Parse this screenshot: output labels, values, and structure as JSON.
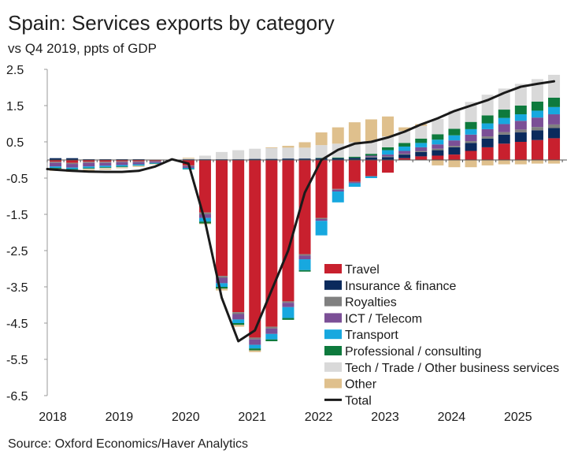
{
  "header": {
    "title": "Spain: Services exports by category",
    "subtitle": "vs Q4 2019, ppts of GDP"
  },
  "footer": {
    "source": "Source: Oxford Economics/Haver Analytics"
  },
  "chart_data": {
    "type": "bar",
    "stacked": true,
    "title": "Spain: Services exports by category",
    "subtitle": "vs Q4 2019, ppts of GDP",
    "xlabel": "",
    "ylabel": "",
    "ylim": [
      -6.5,
      2.5
    ],
    "yticks": [
      "2.5",
      "1.5",
      "0.5",
      "-0.5",
      "-1.5",
      "-2.5",
      "-3.5",
      "-4.5",
      "-5.5",
      "-6.5"
    ],
    "xtick_labels": [
      "2018",
      "2019",
      "2020",
      "2021",
      "2022",
      "2023",
      "2024",
      "2025"
    ],
    "grid": false,
    "legend_position": "bottom-right",
    "categories": [
      "2018Q1",
      "2018Q2",
      "2018Q3",
      "2018Q4",
      "2019Q1",
      "2019Q2",
      "2019Q3",
      "2019Q4",
      "2020Q1",
      "2020Q2",
      "2020Q3",
      "2020Q4",
      "2021Q1",
      "2021Q2",
      "2021Q3",
      "2021Q4",
      "2022Q1",
      "2022Q2",
      "2022Q3",
      "2022Q4",
      "2023Q1",
      "2023Q2",
      "2023Q3",
      "2023Q4",
      "2024Q1",
      "2024Q2",
      "2024Q3",
      "2024Q4",
      "2025Q1",
      "2025Q2",
      "2025Q3"
    ],
    "series": [
      {
        "name": "Travel",
        "color": "#c8202e",
        "values": [
          -0.05,
          -0.08,
          -0.05,
          -0.05,
          -0.04,
          -0.04,
          -0.03,
          0,
          -0.15,
          -1.45,
          -3.2,
          -4.2,
          -4.9,
          -4.6,
          -3.9,
          -2.6,
          -1.6,
          -0.8,
          -0.6,
          -0.45,
          -0.35,
          0.05,
          0.1,
          0.12,
          0.15,
          0.25,
          0.35,
          0.45,
          0.5,
          0.55,
          0.6
        ]
      },
      {
        "name": "Insurance & finance",
        "color": "#0b2a5c",
        "values": [
          0.05,
          0.05,
          0.02,
          0.02,
          0.02,
          0.02,
          0.01,
          0,
          0.02,
          0.02,
          0.02,
          0.02,
          0.03,
          0.03,
          0.04,
          0.04,
          0.05,
          0.05,
          0.06,
          0.07,
          0.08,
          0.1,
          0.12,
          0.15,
          0.2,
          0.22,
          0.24,
          0.25,
          0.26,
          0.27,
          0.28
        ]
      },
      {
        "name": "Royalties",
        "color": "#808080",
        "values": [
          -0.03,
          -0.03,
          -0.03,
          -0.03,
          -0.02,
          -0.02,
          -0.01,
          0,
          -0.02,
          -0.05,
          -0.05,
          -0.05,
          -0.05,
          -0.05,
          -0.04,
          -0.04,
          -0.03,
          -0.02,
          -0.01,
          0.02,
          0.02,
          0.02,
          0.03,
          0.04,
          0.04,
          0.05,
          0.06,
          0.07,
          0.08,
          0.09,
          0.1
        ]
      },
      {
        "name": "ICT / Telecom",
        "color": "#7b4f96",
        "values": [
          -0.1,
          -0.1,
          -0.1,
          -0.08,
          -0.08,
          -0.06,
          -0.04,
          0,
          -0.05,
          -0.1,
          -0.15,
          -0.15,
          -0.15,
          -0.15,
          -0.12,
          -0.1,
          -0.05,
          -0.05,
          -0.03,
          0.03,
          0.05,
          0.08,
          0.1,
          0.12,
          0.15,
          0.18,
          0.2,
          0.22,
          0.24,
          0.26,
          0.28
        ]
      },
      {
        "name": "Transport",
        "color": "#17a8df",
        "values": [
          -0.04,
          -0.04,
          -0.04,
          -0.04,
          -0.04,
          -0.03,
          -0.02,
          0,
          -0.03,
          -0.1,
          -0.1,
          -0.1,
          -0.1,
          -0.15,
          -0.3,
          -0.3,
          -0.4,
          -0.3,
          -0.1,
          -0.05,
          0.12,
          0.12,
          0.12,
          0.13,
          0.14,
          0.15,
          0.16,
          0.17,
          0.18,
          0.19,
          0.2
        ]
      },
      {
        "name": "Professional / consulting",
        "color": "#0e7a3d",
        "values": [
          -0.02,
          -0.02,
          -0.02,
          -0.02,
          -0.02,
          -0.01,
          -0.01,
          0,
          -0.01,
          -0.05,
          -0.05,
          -0.05,
          -0.05,
          -0.05,
          -0.05,
          -0.04,
          0.01,
          0.02,
          0.03,
          0.05,
          0.08,
          0.1,
          0.12,
          0.15,
          0.18,
          0.2,
          0.22,
          0.23,
          0.24,
          0.25,
          0.26
        ]
      },
      {
        "name": "Tech / Trade / Other business services",
        "color": "#d9d9d9",
        "values": [
          -0.02,
          -0.02,
          -0.02,
          -0.02,
          -0.01,
          -0.01,
          0,
          0,
          0.02,
          0.1,
          0.2,
          0.25,
          0.28,
          0.3,
          0.3,
          0.3,
          0.35,
          0.38,
          0.4,
          0.35,
          0.3,
          0.33,
          0.35,
          0.42,
          0.5,
          0.55,
          0.57,
          0.58,
          0.6,
          0.62,
          0.63
        ]
      },
      {
        "name": "Other",
        "color": "#dfc08d",
        "values": [
          -0.04,
          -0.04,
          -0.03,
          -0.03,
          -0.02,
          -0.02,
          -0.01,
          0,
          0.02,
          -0.02,
          -0.05,
          -0.05,
          -0.05,
          0.02,
          0.05,
          0.15,
          0.35,
          0.45,
          0.55,
          0.6,
          0.55,
          0.1,
          0.05,
          -0.15,
          -0.2,
          -0.2,
          -0.15,
          -0.12,
          -0.12,
          -0.1,
          -0.1
        ]
      }
    ],
    "line": {
      "name": "Total",
      "color": "#1a1a1a",
      "x": [
        0,
        0.5,
        1.5,
        2.5,
        3.5,
        4.5,
        5.5,
        6.5,
        7.5,
        8.5,
        9.5,
        10.5,
        11.5,
        12.5,
        13.5,
        14.5,
        15.5,
        16.5,
        17.5,
        18.5,
        19.5,
        20.5,
        21.5,
        22.5,
        23.5,
        24.5,
        25.5,
        26.5,
        27.5,
        28.5,
        29.5,
        30.5
      ],
      "values": [
        -0.25,
        -0.27,
        -0.3,
        -0.32,
        -0.33,
        -0.33,
        -0.3,
        -0.18,
        0.02,
        -0.1,
        -1.7,
        -3.8,
        -5.0,
        -4.7,
        -3.6,
        -2.5,
        -0.9,
        0.0,
        0.28,
        0.45,
        0.5,
        0.62,
        0.78,
        0.98,
        1.15,
        1.35,
        1.5,
        1.65,
        1.85,
        2.02,
        2.1,
        2.17
      ]
    }
  }
}
